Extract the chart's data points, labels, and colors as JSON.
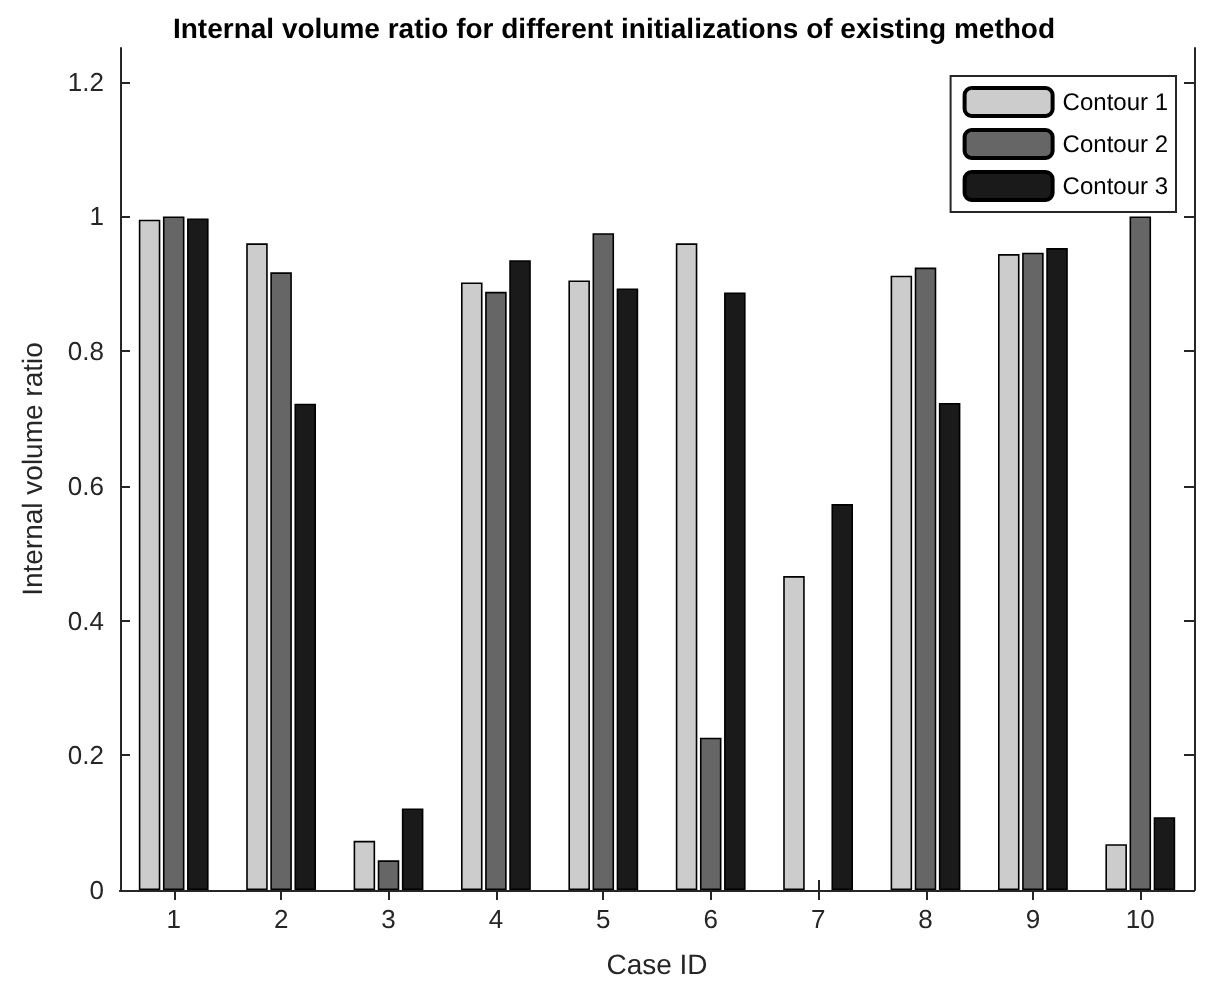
{
  "chart_data": {
    "type": "bar",
    "title": "Internal volume ratio for different initializations of existing method",
    "xlabel": "Case ID",
    "ylabel": "Internal volume ratio",
    "categories": [
      "1",
      "2",
      "3",
      "4",
      "5",
      "6",
      "7",
      "8",
      "9",
      "10"
    ],
    "series": [
      {
        "name": "Contour 1",
        "color": "#cccccc",
        "values": [
          0.995,
          0.96,
          0.073,
          0.902,
          0.905,
          0.96,
          0.466,
          0.912,
          0.944,
          0.068
        ]
      },
      {
        "name": "Contour 2",
        "color": "#666666",
        "values": [
          1.0,
          0.917,
          0.044,
          0.888,
          0.975,
          0.226,
          null,
          0.924,
          0.946,
          1.0
        ]
      },
      {
        "name": "Contour 3",
        "color": "#1a1a1a",
        "values": [
          0.997,
          0.722,
          0.121,
          0.935,
          0.893,
          0.887,
          0.573,
          0.723,
          0.953,
          0.108
        ]
      }
    ],
    "ylim": [
      0,
      1.25
    ],
    "yticks": [
      0,
      0.2,
      0.4,
      0.6,
      0.8,
      1,
      1.2
    ],
    "grid": false,
    "legend": "top right"
  }
}
